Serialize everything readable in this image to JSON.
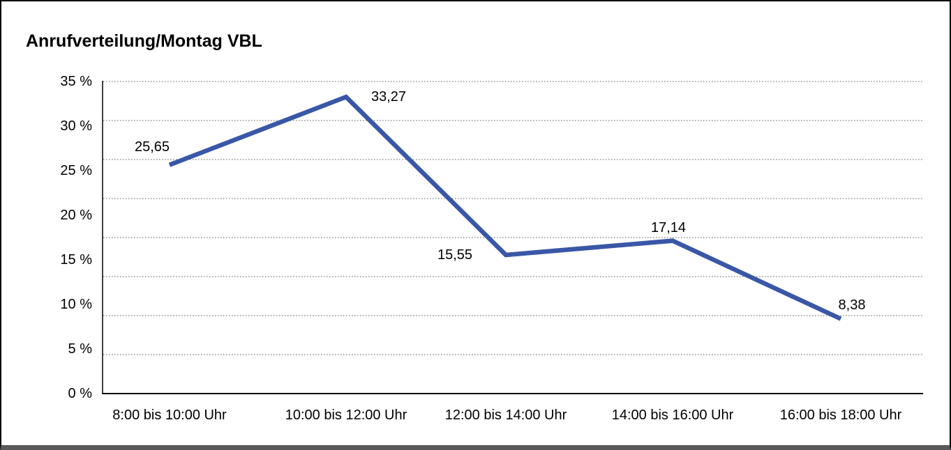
{
  "title": "Anrufverteilung/Montag VBL",
  "colors": {
    "line": "#3a57a7",
    "gridline": "#777777",
    "axis": "#000000",
    "text": "#000000",
    "frame_border": "#000000",
    "frame_bottom_bar": "#58595b",
    "background": "#ffffff"
  },
  "chart_data": {
    "type": "line",
    "title": "Anrufverteilung/Montag VBL",
    "categories": [
      "8:00 bis 10:00 Uhr",
      "10:00 bis 12:00 Uhr",
      "12:00 bis 14:00 Uhr",
      "14:00 bis 16:00 Uhr",
      "16:00 bis 18:00 Uhr"
    ],
    "values": [
      25.65,
      33.27,
      15.55,
      17.14,
      8.38
    ],
    "value_labels": [
      "25,65",
      "33,27",
      "15,55",
      "17,14",
      "8,38"
    ],
    "value_label_positions": [
      "above-left",
      "right",
      "left",
      "above",
      "above-right"
    ],
    "unit": "%",
    "xlabel": "",
    "ylabel": "",
    "ylim": [
      0,
      35
    ],
    "ytick_step": 5,
    "ytick_values": [
      35,
      30,
      25,
      20,
      15,
      10,
      5,
      0
    ],
    "ytick_labels": [
      "35 %",
      "30 %",
      "25 %",
      "20 %",
      "15 %",
      "10 %",
      "5 %",
      "0 %"
    ],
    "grid": "horizontal-dotted",
    "gridline_count": 9,
    "legend": "none"
  }
}
